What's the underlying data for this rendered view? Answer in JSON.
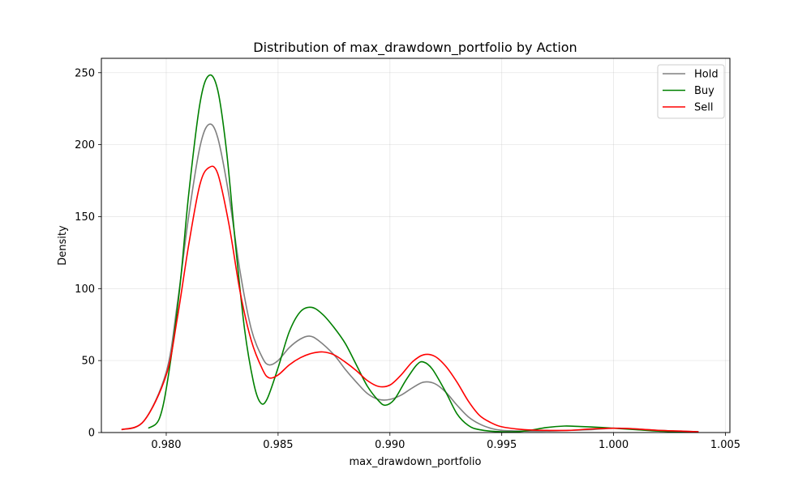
{
  "chart_data": {
    "type": "line",
    "title": "Distribution of max_drawdown_portfolio by Action",
    "xlabel": "max_drawdown_portfolio",
    "ylabel": "Density",
    "xlim": [
      0.9771,
      1.0052
    ],
    "ylim": [
      0,
      260
    ],
    "xticks": [
      0.98,
      0.985,
      0.99,
      0.995,
      1.0,
      1.005
    ],
    "xtick_labels": [
      "0.980",
      "0.985",
      "0.990",
      "0.995",
      "1.000",
      "1.005"
    ],
    "yticks": [
      0,
      50,
      100,
      150,
      200,
      250
    ],
    "ytick_labels": [
      "0",
      "50",
      "100",
      "150",
      "200",
      "250"
    ],
    "grid": true,
    "legend_position": "top-right",
    "series": [
      {
        "name": "Hold",
        "color": "#808080",
        "points": [
          [
            0.978,
            2
          ],
          [
            0.979,
            8
          ],
          [
            0.98,
            42
          ],
          [
            0.9805,
            90
          ],
          [
            0.981,
            150
          ],
          [
            0.9815,
            198
          ],
          [
            0.9819,
            214
          ],
          [
            0.9823,
            205
          ],
          [
            0.9828,
            165
          ],
          [
            0.9833,
            112
          ],
          [
            0.9838,
            72
          ],
          [
            0.9843,
            52
          ],
          [
            0.9846,
            47
          ],
          [
            0.985,
            50
          ],
          [
            0.9855,
            59
          ],
          [
            0.986,
            65
          ],
          [
            0.9864,
            67
          ],
          [
            0.9868,
            64
          ],
          [
            0.9875,
            54
          ],
          [
            0.988,
            44
          ],
          [
            0.9885,
            35
          ],
          [
            0.989,
            27
          ],
          [
            0.9895,
            23
          ],
          [
            0.99,
            23
          ],
          [
            0.9905,
            26
          ],
          [
            0.991,
            31
          ],
          [
            0.9915,
            35
          ],
          [
            0.992,
            34
          ],
          [
            0.9925,
            28
          ],
          [
            0.993,
            19
          ],
          [
            0.9935,
            11
          ],
          [
            0.994,
            6
          ],
          [
            0.9945,
            3
          ],
          [
            0.995,
            1.5
          ],
          [
            0.996,
            1
          ],
          [
            0.997,
            1
          ],
          [
            0.998,
            1.5
          ],
          [
            0.999,
            2
          ],
          [
            1.0,
            3
          ],
          [
            1.001,
            2.5
          ],
          [
            1.002,
            1.5
          ],
          [
            1.003,
            1
          ],
          [
            1.0038,
            0.5
          ]
        ]
      },
      {
        "name": "Buy",
        "color": "#008000",
        "points": [
          [
            0.9792,
            3
          ],
          [
            0.9797,
            10
          ],
          [
            0.9801,
            40
          ],
          [
            0.9806,
            100
          ],
          [
            0.981,
            165
          ],
          [
            0.9815,
            228
          ],
          [
            0.9819,
            248
          ],
          [
            0.9823,
            238
          ],
          [
            0.9827,
            195
          ],
          [
            0.9831,
            130
          ],
          [
            0.9835,
            72
          ],
          [
            0.9839,
            35
          ],
          [
            0.9842,
            21
          ],
          [
            0.9845,
            23
          ],
          [
            0.985,
            45
          ],
          [
            0.9855,
            70
          ],
          [
            0.986,
            84
          ],
          [
            0.9865,
            87
          ],
          [
            0.987,
            82
          ],
          [
            0.9875,
            73
          ],
          [
            0.988,
            62
          ],
          [
            0.9885,
            47
          ],
          [
            0.989,
            32
          ],
          [
            0.9895,
            22
          ],
          [
            0.9898,
            19
          ],
          [
            0.9902,
            23
          ],
          [
            0.9907,
            36
          ],
          [
            0.9912,
            47
          ],
          [
            0.9915,
            49
          ],
          [
            0.9919,
            44
          ],
          [
            0.9925,
            28
          ],
          [
            0.993,
            13
          ],
          [
            0.9935,
            5
          ],
          [
            0.994,
            2
          ],
          [
            0.995,
            0.5
          ],
          [
            0.996,
            1
          ],
          [
            0.997,
            3.5
          ],
          [
            0.9978,
            4.5
          ],
          [
            0.9985,
            4.2
          ],
          [
            0.9995,
            3.5
          ],
          [
            1.0,
            3
          ],
          [
            1.001,
            2
          ],
          [
            1.002,
            1
          ],
          [
            1.003,
            0.5
          ],
          [
            1.0036,
            0.3
          ]
        ]
      },
      {
        "name": "Sell",
        "color": "#ff0000",
        "points": [
          [
            0.978,
            2
          ],
          [
            0.979,
            8
          ],
          [
            0.98,
            40
          ],
          [
            0.9805,
            80
          ],
          [
            0.981,
            130
          ],
          [
            0.9815,
            172
          ],
          [
            0.9819,
            184
          ],
          [
            0.9823,
            180
          ],
          [
            0.9828,
            145
          ],
          [
            0.9833,
            98
          ],
          [
            0.9838,
            64
          ],
          [
            0.9843,
            44
          ],
          [
            0.9846,
            38
          ],
          [
            0.985,
            40
          ],
          [
            0.9855,
            47
          ],
          [
            0.986,
            52
          ],
          [
            0.9865,
            55
          ],
          [
            0.987,
            56
          ],
          [
            0.9875,
            54
          ],
          [
            0.988,
            49
          ],
          [
            0.9885,
            43
          ],
          [
            0.989,
            36
          ],
          [
            0.9895,
            32
          ],
          [
            0.99,
            33
          ],
          [
            0.9905,
            40
          ],
          [
            0.991,
            49
          ],
          [
            0.9915,
            54
          ],
          [
            0.992,
            53
          ],
          [
            0.9925,
            46
          ],
          [
            0.993,
            35
          ],
          [
            0.9935,
            22
          ],
          [
            0.994,
            12
          ],
          [
            0.9945,
            7
          ],
          [
            0.995,
            4
          ],
          [
            0.996,
            2
          ],
          [
            0.997,
            1.5
          ],
          [
            0.998,
            1.5
          ],
          [
            0.999,
            2.5
          ],
          [
            1.0,
            3
          ],
          [
            1.001,
            2.5
          ],
          [
            1.002,
            1.5
          ],
          [
            1.003,
            1
          ],
          [
            1.0038,
            0.5
          ]
        ]
      }
    ]
  }
}
